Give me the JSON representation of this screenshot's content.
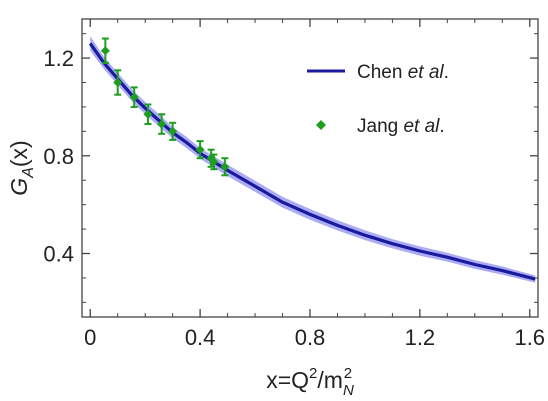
{
  "chart_data": {
    "type": "line",
    "xlabel": {
      "base": "x=Q",
      "sup1": "2",
      "mid": "/m",
      "sub2": "N",
      "sup2": "2"
    },
    "ylabel": {
      "base": "G",
      "sub": "A",
      "tail": "(x)"
    },
    "xlim": [
      -0.03,
      1.63
    ],
    "ylim": [
      0.14,
      1.36
    ],
    "xticks": [
      0,
      0.4,
      0.8,
      1.2,
      1.6
    ],
    "xtick_labels": [
      "0",
      "0.4",
      "0.8",
      "1.2",
      "1.6"
    ],
    "yticks": [
      0.4,
      0.8,
      1.2
    ],
    "ytick_labels": [
      "0.4",
      "0.8",
      "1.2"
    ],
    "legend": {
      "placement": "top-right",
      "entries": [
        {
          "prefix": "Chen ",
          "italic": "et al",
          "suffix": ".",
          "marker": "line"
        },
        {
          "prefix": "Jang ",
          "italic": "et al",
          "suffix": ".",
          "marker": "diamond"
        }
      ]
    },
    "series": [
      {
        "kind": "curve_band",
        "color": "#1a1a9e",
        "band_color": "#8080ee",
        "x": [
          0.0,
          0.05,
          0.1,
          0.15,
          0.2,
          0.25,
          0.3,
          0.35,
          0.4,
          0.45,
          0.5,
          0.6,
          0.7,
          0.8,
          0.9,
          1.0,
          1.1,
          1.2,
          1.3,
          1.4,
          1.5,
          1.62
        ],
        "y": [
          1.26,
          1.18,
          1.115,
          1.05,
          0.995,
          0.945,
          0.895,
          0.855,
          0.81,
          0.775,
          0.74,
          0.675,
          0.61,
          0.56,
          0.515,
          0.475,
          0.44,
          0.41,
          0.385,
          0.355,
          0.33,
          0.295
        ],
        "lower": [
          1.23,
          1.155,
          1.09,
          1.025,
          0.97,
          0.92,
          0.872,
          0.832,
          0.788,
          0.752,
          0.717,
          0.652,
          0.588,
          0.538,
          0.494,
          0.455,
          0.421,
          0.391,
          0.367,
          0.337,
          0.313,
          0.28
        ],
        "upper": [
          1.29,
          1.205,
          1.14,
          1.075,
          1.02,
          0.97,
          0.918,
          0.878,
          0.832,
          0.798,
          0.763,
          0.698,
          0.632,
          0.582,
          0.536,
          0.495,
          0.459,
          0.429,
          0.403,
          0.373,
          0.347,
          0.31
        ]
      },
      {
        "kind": "points",
        "color": "#1e9e1e",
        "points": [
          {
            "x": 0.055,
            "y": 1.23,
            "err": 0.05
          },
          {
            "x": 0.1,
            "y": 1.1,
            "err": 0.05
          },
          {
            "x": 0.16,
            "y": 1.04,
            "err": 0.04
          },
          {
            "x": 0.21,
            "y": 0.97,
            "err": 0.04
          },
          {
            "x": 0.26,
            "y": 0.93,
            "err": 0.04
          },
          {
            "x": 0.3,
            "y": 0.9,
            "err": 0.035
          },
          {
            "x": 0.4,
            "y": 0.825,
            "err": 0.035
          },
          {
            "x": 0.44,
            "y": 0.79,
            "err": 0.035
          },
          {
            "x": 0.45,
            "y": 0.775,
            "err": 0.03
          },
          {
            "x": 0.49,
            "y": 0.755,
            "err": 0.035
          }
        ]
      }
    ]
  }
}
